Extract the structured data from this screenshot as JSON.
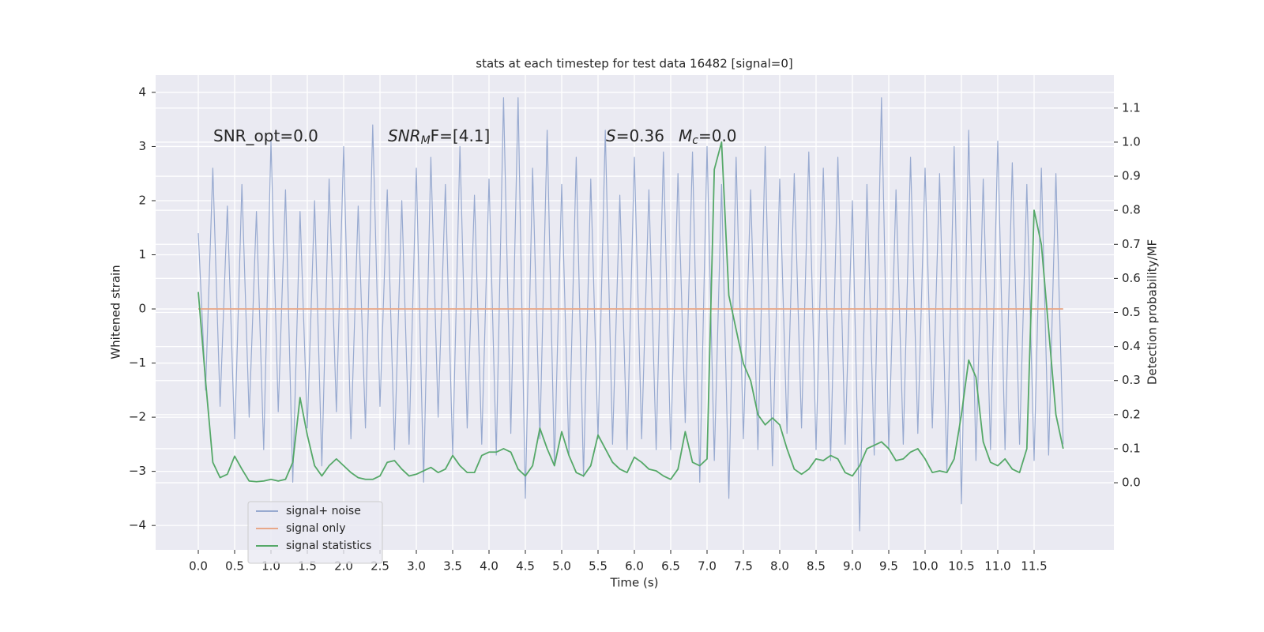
{
  "chart_data": {
    "type": "line",
    "title": "stats at each timestep for test data 16482 [signal=0]",
    "xlabel": "Time (s)",
    "ylabel": "Whitened strain",
    "y2label": "Detection probability/MF",
    "annotations": [
      {
        "text": "SNR_opt=0.0"
      },
      {
        "italic": "SNR",
        "sub": "M",
        "text": "F=[4.1]"
      },
      {
        "italic": "S",
        "text": "=0.36"
      },
      {
        "italic": "M",
        "sub": "c",
        "text": "=0.0"
      }
    ],
    "x": [
      0,
      0.1,
      0.2,
      0.3,
      0.4,
      0.5,
      0.6,
      0.7,
      0.8,
      0.9,
      1,
      1.1,
      1.2,
      1.3,
      1.4,
      1.5,
      1.6,
      1.7,
      1.8,
      1.9,
      2,
      2.1,
      2.2,
      2.3,
      2.4,
      2.5,
      2.6,
      2.7,
      2.8,
      2.9,
      3,
      3.1,
      3.2,
      3.3,
      3.4,
      3.5,
      3.6,
      3.7,
      3.8,
      3.9,
      4,
      4.1,
      4.2,
      4.3,
      4.4,
      4.5,
      4.6,
      4.7,
      4.8,
      4.9,
      5,
      5.1,
      5.2,
      5.3,
      5.4,
      5.5,
      5.6,
      5.7,
      5.8,
      5.9,
      6,
      6.1,
      6.2,
      6.3,
      6.4,
      6.5,
      6.6,
      6.7,
      6.8,
      6.9,
      7,
      7.1,
      7.2,
      7.3,
      7.4,
      7.5,
      7.6,
      7.7,
      7.8,
      7.9,
      8,
      8.1,
      8.2,
      8.3,
      8.4,
      8.5,
      8.6,
      8.7,
      8.8,
      8.9,
      9,
      9.1,
      9.2,
      9.3,
      9.4,
      9.5,
      9.6,
      9.7,
      9.8,
      9.9,
      10,
      10.1,
      10.2,
      10.3,
      10.4,
      10.5,
      10.6,
      10.7,
      10.8,
      10.9,
      11,
      11.1,
      11.2,
      11.3,
      11.4,
      11.5,
      11.6,
      11.7,
      11.8,
      11.9
    ],
    "series": [
      {
        "name": "signal+ noise",
        "color": "#98aad0",
        "values": [
          1.4,
          -1.5,
          2.6,
          -1.8,
          1.9,
          -2.4,
          2.3,
          -2.0,
          1.8,
          -2.6,
          3.1,
          -1.9,
          2.2,
          -3.2,
          1.8,
          -2.2,
          2.0,
          -2.9,
          2.4,
          -1.9,
          3.0,
          -2.4,
          1.9,
          -2.2,
          3.4,
          -1.8,
          2.2,
          -2.6,
          2.0,
          -2.5,
          2.6,
          -3.2,
          2.8,
          -2.0,
          2.3,
          -2.7,
          3.0,
          -2.2,
          2.1,
          -2.5,
          2.4,
          -2.7,
          3.9,
          -2.3,
          3.9,
          -3.5,
          2.6,
          -2.4,
          3.3,
          -2.9,
          2.3,
          -2.7,
          2.8,
          -3.1,
          2.4,
          -2.4,
          3.3,
          -2.5,
          2.1,
          -2.6,
          2.8,
          -2.4,
          2.2,
          -2.6,
          2.9,
          -2.6,
          2.5,
          -2.1,
          2.9,
          -3.2,
          3.0,
          -2.8,
          2.3,
          -3.5,
          2.8,
          -2.4,
          2.2,
          -2.6,
          3.0,
          -2.9,
          2.4,
          -2.3,
          2.5,
          -2.2,
          2.9,
          -2.6,
          2.6,
          -2.8,
          2.8,
          -2.5,
          2.0,
          -4.1,
          2.3,
          -2.7,
          3.9,
          -2.6,
          2.2,
          -2.5,
          2.8,
          -2.3,
          2.6,
          -2.2,
          2.5,
          -3.0,
          3.0,
          -3.6,
          3.3,
          -2.8,
          2.4,
          -2.6,
          3.1,
          -2.6,
          2.7,
          -2.5,
          2.3,
          -2.8,
          2.6,
          -2.7,
          2.5,
          -2.5
        ]
      },
      {
        "name": "signal only",
        "color": "#e8a889",
        "values": [
          0,
          0,
          0,
          0,
          0,
          0,
          0,
          0,
          0,
          0,
          0,
          0,
          0,
          0,
          0,
          0,
          0,
          0,
          0,
          0,
          0,
          0,
          0,
          0,
          0,
          0,
          0,
          0,
          0,
          0,
          0,
          0,
          0,
          0,
          0,
          0,
          0,
          0,
          0,
          0,
          0,
          0,
          0,
          0,
          0,
          0,
          0,
          0,
          0,
          0,
          0,
          0,
          0,
          0,
          0,
          0,
          0,
          0,
          0,
          0,
          0,
          0,
          0,
          0,
          0,
          0,
          0,
          0,
          0,
          0,
          0,
          0,
          0,
          0,
          0,
          0,
          0,
          0,
          0,
          0,
          0,
          0,
          0,
          0,
          0,
          0,
          0,
          0,
          0,
          0,
          0,
          0,
          0,
          0,
          0,
          0,
          0,
          0,
          0,
          0,
          0,
          0,
          0,
          0,
          0,
          0,
          0,
          0,
          0,
          0,
          0,
          0,
          0,
          0,
          0,
          0,
          0,
          0,
          0,
          0
        ]
      },
      {
        "name": "signal statistics",
        "color": "#55a868",
        "axis": "y2",
        "values": [
          0.56,
          0.3,
          0.06,
          0.015,
          0.025,
          0.078,
          0.04,
          0.005,
          0.003,
          0.005,
          0.01,
          0.005,
          0.01,
          0.06,
          0.25,
          0.14,
          0.05,
          0.02,
          0.05,
          0.07,
          0.05,
          0.03,
          0.015,
          0.01,
          0.01,
          0.02,
          0.06,
          0.065,
          0.04,
          0.02,
          0.025,
          0.035,
          0.045,
          0.03,
          0.04,
          0.08,
          0.05,
          0.03,
          0.03,
          0.08,
          0.09,
          0.09,
          0.1,
          0.09,
          0.04,
          0.02,
          0.05,
          0.16,
          0.1,
          0.05,
          0.15,
          0.08,
          0.03,
          0.02,
          0.05,
          0.14,
          0.1,
          0.06,
          0.04,
          0.03,
          0.075,
          0.06,
          0.04,
          0.035,
          0.02,
          0.01,
          0.04,
          0.15,
          0.06,
          0.05,
          0.07,
          0.92,
          1.0,
          0.55,
          0.45,
          0.35,
          0.3,
          0.2,
          0.17,
          0.19,
          0.17,
          0.1,
          0.04,
          0.025,
          0.04,
          0.07,
          0.065,
          0.08,
          0.07,
          0.03,
          0.02,
          0.05,
          0.1,
          0.11,
          0.12,
          0.1,
          0.065,
          0.07,
          0.09,
          0.1,
          0.07,
          0.03,
          0.035,
          0.03,
          0.07,
          0.2,
          0.36,
          0.31,
          0.12,
          0.06,
          0.05,
          0.07,
          0.04,
          0.03,
          0.1,
          0.8,
          0.7,
          0.45,
          0.2,
          0.1
        ]
      }
    ],
    "xlim": [
      -0.587,
      12.598
    ],
    "xticks": [
      {
        "value": 0,
        "label": "0.0"
      },
      0.5,
      {
        "value": 1,
        "label": "1.0"
      },
      1.5,
      {
        "value": 2,
        "label": "2.0"
      },
      2.5,
      {
        "value": 3,
        "label": "3.0"
      },
      3.5,
      {
        "value": 4,
        "label": "4.0"
      },
      4.5,
      {
        "value": 5,
        "label": "5.0"
      },
      5.5,
      {
        "value": 6,
        "label": "6.0"
      },
      6.5,
      {
        "value": 7,
        "label": "7.0"
      },
      7.5,
      {
        "value": 8,
        "label": "8.0"
      },
      8.5,
      {
        "value": 9,
        "label": "9.0"
      },
      9.5,
      {
        "value": 10,
        "label": "10.0"
      },
      10.5,
      {
        "value": 11,
        "label": "11.0"
      },
      11.5
    ],
    "ylim": [
      -4.45,
      4.32
    ],
    "yticks": [
      {
        "value": -4,
        "label": "−4"
      },
      {
        "value": -3,
        "label": "−3"
      },
      {
        "value": -2,
        "label": "−2"
      },
      {
        "value": -1,
        "label": "−1"
      },
      0,
      1,
      2,
      3,
      4
    ],
    "y2lim": [
      -0.197,
      1.197
    ],
    "y2ticks": [
      {
        "value": 0,
        "label": "0.0"
      },
      0.1,
      0.2,
      0.3,
      0.4,
      0.5,
      0.6,
      0.7,
      0.8,
      0.9,
      {
        "value": 1,
        "label": "1.0"
      },
      1.1
    ],
    "grid": true,
    "legend_loc": "lower left"
  }
}
